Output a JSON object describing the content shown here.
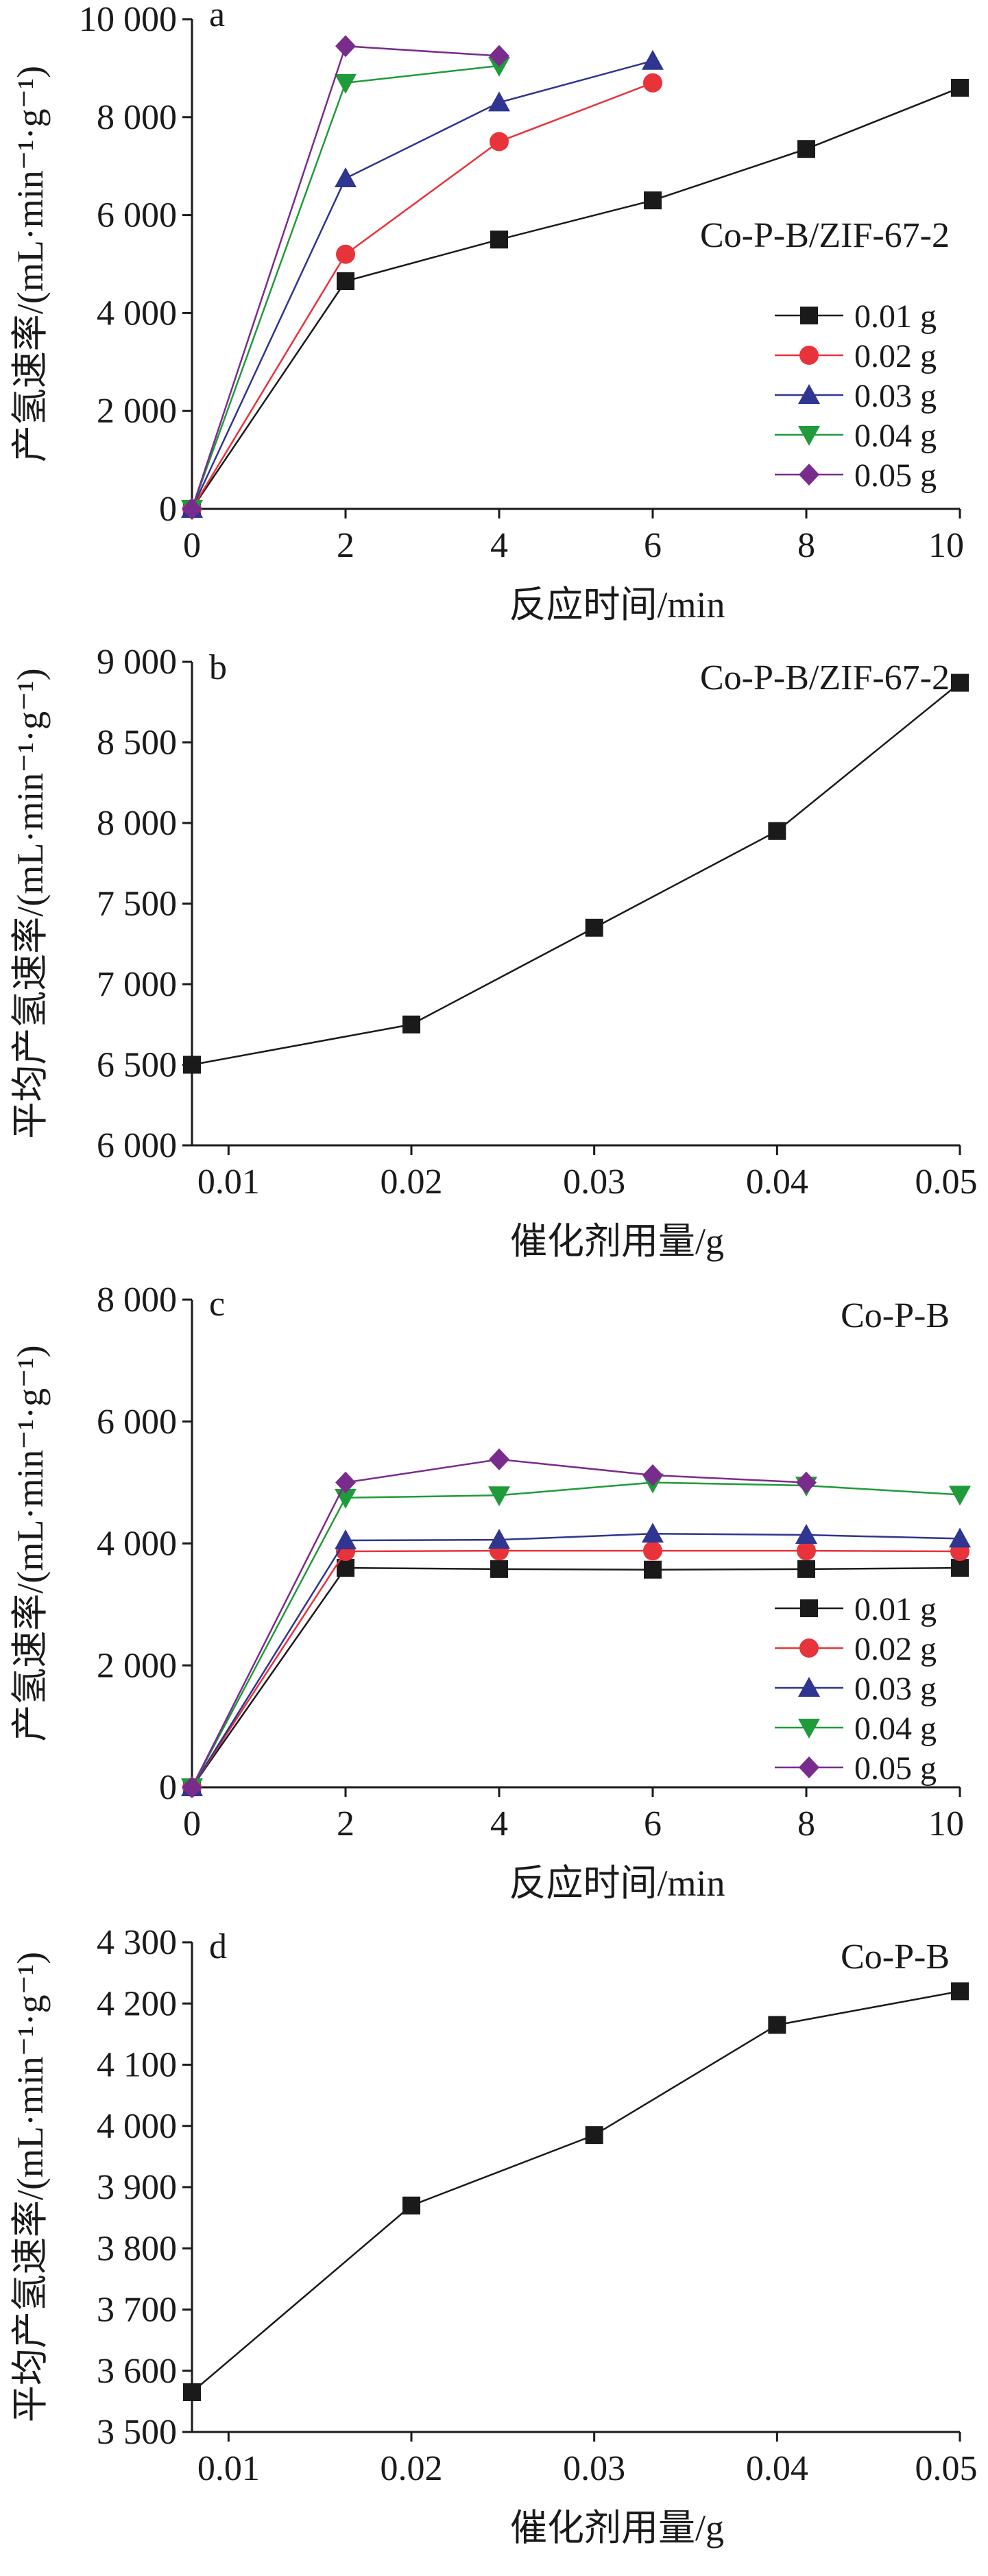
{
  "chart_data": [
    {
      "panel": "a",
      "type": "line",
      "annotation": "Co-P-B/ZIF-67-2",
      "xlabel": "反应时间/min",
      "ylabel": "产氢速率/(mL·min⁻¹·g⁻¹)",
      "xlim": [
        0,
        10
      ],
      "ylim": [
        0,
        10000
      ],
      "xticks": [
        0,
        2,
        4,
        6,
        8,
        10
      ],
      "xtick_labels": [
        "0",
        "2",
        "4",
        "6",
        "8",
        "10"
      ],
      "yticks": [
        0,
        2000,
        4000,
        6000,
        8000,
        10000
      ],
      "ytick_labels": [
        "0",
        "2 000",
        "4 000",
        "6 000",
        "8 000",
        "10 000"
      ],
      "grid": false,
      "legend_position": "right-middle",
      "series": [
        {
          "name": "0.01 g",
          "color": "#1a1a1a",
          "marker": "square",
          "x": [
            0,
            2,
            4,
            6,
            8,
            10
          ],
          "y": [
            0,
            4650,
            5500,
            6300,
            7350,
            8600
          ]
        },
        {
          "name": "0.02 g",
          "color": "#e8333a",
          "marker": "circle",
          "x": [
            0,
            2,
            4,
            6
          ],
          "y": [
            0,
            5200,
            7500,
            8700
          ]
        },
        {
          "name": "0.03 g",
          "color": "#2f3590",
          "marker": "triangle-up",
          "x": [
            0,
            2,
            4,
            6
          ],
          "y": [
            0,
            6750,
            8300,
            9150
          ]
        },
        {
          "name": "0.04 g",
          "color": "#1f9b3a",
          "marker": "triangle-down",
          "x": [
            0,
            2,
            4
          ],
          "y": [
            0,
            8700,
            9050
          ]
        },
        {
          "name": "0.05 g",
          "color": "#7a2c8c",
          "marker": "diamond",
          "x": [
            0,
            2,
            4
          ],
          "y": [
            0,
            9450,
            9250
          ]
        }
      ]
    },
    {
      "panel": "b",
      "type": "line",
      "annotation": "Co-P-B/ZIF-67-2",
      "xlabel": "催化剂用量/g",
      "ylabel": "平均产氢速率/(mL·min⁻¹·g⁻¹)",
      "xlim": [
        0.008,
        0.05
      ],
      "ylim": [
        6000,
        9000
      ],
      "xticks": [
        0.01,
        0.02,
        0.03,
        0.04,
        0.05
      ],
      "xtick_labels": [
        "0.01",
        "0.02",
        "0.03",
        "0.04",
        "0.05"
      ],
      "yticks": [
        6000,
        6500,
        7000,
        7500,
        8000,
        8500,
        9000
      ],
      "ytick_labels": [
        "6 000",
        "6 500",
        "7 000",
        "7 500",
        "8 000",
        "8 500",
        "9 000"
      ],
      "grid": false,
      "series": [
        {
          "color": "#1a1a1a",
          "marker": "square",
          "x": [
            0.008,
            0.02,
            0.03,
            0.04,
            0.05
          ],
          "y": [
            6500,
            6750,
            7350,
            7950,
            8870
          ]
        }
      ]
    },
    {
      "panel": "c",
      "type": "line",
      "annotation": "Co-P-B",
      "xlabel": "反应时间/min",
      "ylabel": "产氢速率/(mL·min⁻¹·g⁻¹)",
      "xlim": [
        0,
        10
      ],
      "ylim": [
        0,
        8000
      ],
      "xticks": [
        0,
        2,
        4,
        6,
        8,
        10
      ],
      "xtick_labels": [
        "0",
        "2",
        "4",
        "6",
        "8",
        "10"
      ],
      "yticks": [
        0,
        2000,
        4000,
        6000,
        8000
      ],
      "ytick_labels": [
        "0",
        "2 000",
        "4 000",
        "6 000",
        "8 000"
      ],
      "grid": false,
      "legend_position": "right-lower",
      "series": [
        {
          "name": "0.01 g",
          "color": "#1a1a1a",
          "marker": "square",
          "x": [
            0,
            2,
            4,
            6,
            8,
            10
          ],
          "y": [
            0,
            3600,
            3580,
            3570,
            3580,
            3600
          ]
        },
        {
          "name": "0.02 g",
          "color": "#e8333a",
          "marker": "circle",
          "x": [
            0,
            2,
            4,
            6,
            8,
            10
          ],
          "y": [
            0,
            3870,
            3880,
            3880,
            3880,
            3870
          ]
        },
        {
          "name": "0.03 g",
          "color": "#2f3590",
          "marker": "triangle-up",
          "x": [
            0,
            2,
            4,
            6,
            8,
            10
          ],
          "y": [
            0,
            4050,
            4060,
            4160,
            4140,
            4080
          ]
        },
        {
          "name": "0.04 g",
          "color": "#1f9b3a",
          "marker": "triangle-down",
          "x": [
            0,
            2,
            4,
            6,
            8,
            10
          ],
          "y": [
            0,
            4750,
            4790,
            5000,
            4950,
            4800
          ]
        },
        {
          "name": "0.05 g",
          "color": "#7a2c8c",
          "marker": "diamond",
          "x": [
            0,
            2,
            4,
            6,
            8
          ],
          "y": [
            0,
            5000,
            5380,
            5120,
            5000
          ]
        }
      ]
    },
    {
      "panel": "d",
      "type": "line",
      "annotation": "Co-P-B",
      "xlabel": "催化剂用量/g",
      "ylabel": "平均产氢速率/(mL·min⁻¹·g⁻¹)",
      "xlim": [
        0.008,
        0.05
      ],
      "ylim": [
        3500,
        4300
      ],
      "xticks": [
        0.01,
        0.02,
        0.03,
        0.04,
        0.05
      ],
      "xtick_labels": [
        "0.01",
        "0.02",
        "0.03",
        "0.04",
        "0.05"
      ],
      "yticks": [
        3500,
        3600,
        3700,
        3800,
        3900,
        4000,
        4100,
        4200,
        4300
      ],
      "ytick_labels": [
        "3 500",
        "3 600",
        "3 700",
        "3 800",
        "3 900",
        "4 000",
        "4 100",
        "4 200",
        "4 300"
      ],
      "grid": false,
      "series": [
        {
          "color": "#1a1a1a",
          "marker": "square",
          "x": [
            0.008,
            0.02,
            0.03,
            0.04,
            0.05
          ],
          "y": [
            3565,
            3870,
            3985,
            4165,
            4220
          ]
        }
      ]
    }
  ]
}
